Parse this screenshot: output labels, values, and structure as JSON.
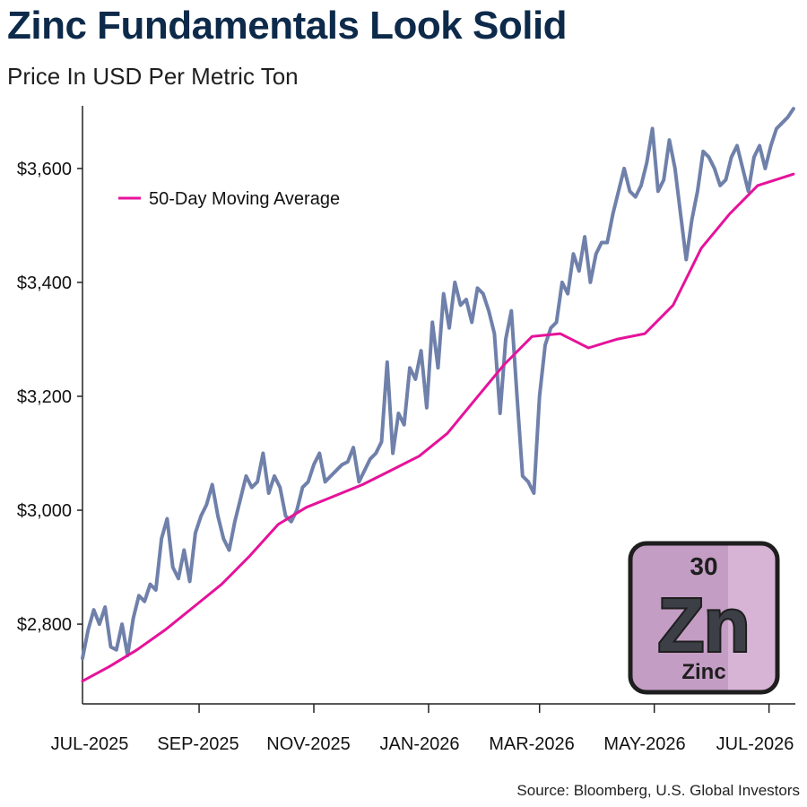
{
  "header": {
    "title": "Zinc Fundamentals Look Solid",
    "subtitle": "Price In USD Per Metric Ton"
  },
  "footer": {
    "source": "Source: Bloomberg, U.S. Global Investors"
  },
  "badge": {
    "number": "30",
    "symbol": "Zn",
    "name": "Zinc"
  },
  "colors": {
    "title": "#0d2a4a",
    "price": "#6f80aa",
    "ma": "#e6129a",
    "badge_left": "#c39dc4",
    "badge_right": "#d7b4d6",
    "badge_border": "#1e1e1e",
    "axis": "#222222"
  },
  "chart_data": {
    "type": "line",
    "title": "Zinc Fundamentals Look Solid",
    "subtitle": "Price In USD Per Metric Ton",
    "x_ticks": [
      "JUL-2025",
      "SEP-2025",
      "NOV-2025",
      "JAN-2026",
      "MAR-2026",
      "MAY-2026",
      "JUL-2026"
    ],
    "y_ticks": [
      "$2,800",
      "$3,000",
      "$3,200",
      "$3,400",
      "$3,600"
    ],
    "y_tick_values": [
      2800,
      3000,
      3200,
      3400,
      3600
    ],
    "xlim": [
      "2025-07-01",
      "2026-07-15"
    ],
    "ylim": [
      2660,
      3710
    ],
    "grid": false,
    "legend": {
      "position": "top-left"
    },
    "series": [
      {
        "key": "price",
        "x": [
          "2025-07-01",
          "2025-07-04",
          "2025-07-07",
          "2025-07-10",
          "2025-07-13",
          "2025-07-16",
          "2025-07-19",
          "2025-07-22",
          "2025-07-25",
          "2025-07-28",
          "2025-07-31",
          "2025-08-03",
          "2025-08-06",
          "2025-08-09",
          "2025-08-12",
          "2025-08-15",
          "2025-08-18",
          "2025-08-21",
          "2025-08-24",
          "2025-08-27",
          "2025-08-30",
          "2025-09-02",
          "2025-09-05",
          "2025-09-08",
          "2025-09-11",
          "2025-09-14",
          "2025-09-17",
          "2025-09-20",
          "2025-09-23",
          "2025-09-26",
          "2025-09-29",
          "2025-10-02",
          "2025-10-05",
          "2025-10-08",
          "2025-10-11",
          "2025-10-14",
          "2025-10-17",
          "2025-10-20",
          "2025-10-23",
          "2025-10-26",
          "2025-10-29",
          "2025-11-01",
          "2025-11-04",
          "2025-11-07",
          "2025-11-10",
          "2025-11-13",
          "2025-11-16",
          "2025-11-19",
          "2025-11-22",
          "2025-11-25",
          "2025-11-28",
          "2025-12-01",
          "2025-12-04",
          "2025-12-07",
          "2025-12-10",
          "2025-12-13",
          "2025-12-16",
          "2025-12-19",
          "2025-12-22",
          "2025-12-25",
          "2025-12-28",
          "2025-12-31",
          "2026-01-03",
          "2026-01-06",
          "2026-01-09",
          "2026-01-12",
          "2026-01-15",
          "2026-01-18",
          "2026-01-21",
          "2026-01-24",
          "2026-01-27",
          "2026-01-30",
          "2026-02-02",
          "2026-02-05",
          "2026-02-08",
          "2026-02-11",
          "2026-02-14",
          "2026-02-17",
          "2026-02-20",
          "2026-02-23",
          "2026-02-26",
          "2026-03-01",
          "2026-03-04",
          "2026-03-07",
          "2026-03-10",
          "2026-03-13",
          "2026-03-16",
          "2026-03-19",
          "2026-03-22",
          "2026-03-25",
          "2026-03-28",
          "2026-03-31",
          "2026-04-03",
          "2026-04-06",
          "2026-04-09",
          "2026-04-12",
          "2026-04-15",
          "2026-04-18",
          "2026-04-21",
          "2026-04-24",
          "2026-04-27",
          "2026-04-30",
          "2026-05-03",
          "2026-05-06",
          "2026-05-09",
          "2026-05-12",
          "2026-05-15",
          "2026-05-18",
          "2026-05-21",
          "2026-05-24",
          "2026-05-27",
          "2026-05-30",
          "2026-06-02",
          "2026-06-05",
          "2026-06-08",
          "2026-06-11",
          "2026-06-14",
          "2026-06-17",
          "2026-06-20",
          "2026-06-23",
          "2026-06-26",
          "2026-06-29",
          "2026-07-02",
          "2026-07-05",
          "2026-07-08",
          "2026-07-11",
          "2026-07-14"
        ],
        "values": [
          2740,
          2790,
          2825,
          2800,
          2830,
          2760,
          2755,
          2800,
          2745,
          2810,
          2850,
          2840,
          2870,
          2860,
          2950,
          2985,
          2900,
          2880,
          2930,
          2875,
          2960,
          2990,
          3010,
          3045,
          2990,
          2950,
          2930,
          2980,
          3020,
          3060,
          3040,
          3050,
          3100,
          3030,
          3060,
          3040,
          2990,
          2980,
          3000,
          3040,
          3050,
          3080,
          3100,
          3050,
          3060,
          3070,
          3080,
          3085,
          3110,
          3050,
          3070,
          3090,
          3100,
          3120,
          3260,
          3100,
          3170,
          3150,
          3250,
          3230,
          3280,
          3180,
          3330,
          3250,
          3380,
          3320,
          3400,
          3360,
          3370,
          3330,
          3390,
          3380,
          3350,
          3310,
          3170,
          3300,
          3350,
          3200,
          3060,
          3050,
          3030,
          3200,
          3290,
          3320,
          3330,
          3400,
          3380,
          3450,
          3420,
          3480,
          3400,
          3450,
          3470,
          3470,
          3520,
          3560,
          3600,
          3560,
          3550,
          3570,
          3610,
          3670,
          3560,
          3580,
          3650,
          3600,
          3520,
          3440,
          3510,
          3560,
          3630,
          3620,
          3600,
          3570,
          3580,
          3620,
          3640,
          3600,
          3560,
          3620,
          3640,
          3600,
          3640,
          3670,
          3680,
          3690,
          3705
        ]
      },
      {
        "key": "ma",
        "name": "50-Day Moving Average",
        "x": [
          "2025-07-01",
          "2025-07-15",
          "2025-07-30",
          "2025-08-14",
          "2025-08-29",
          "2025-09-13",
          "2025-09-28",
          "2025-10-13",
          "2025-10-28",
          "2025-11-12",
          "2025-11-27",
          "2025-12-12",
          "2025-12-27",
          "2026-01-11",
          "2026-01-26",
          "2026-02-10",
          "2026-02-25",
          "2026-03-12",
          "2026-03-27",
          "2026-04-11",
          "2026-04-26",
          "2026-05-11",
          "2026-05-26",
          "2026-06-10",
          "2026-06-25",
          "2026-07-14"
        ],
        "values": [
          2700,
          2725,
          2755,
          2790,
          2830,
          2870,
          2920,
          2975,
          3005,
          3025,
          3045,
          3070,
          3095,
          3135,
          3195,
          3255,
          3305,
          3310,
          3285,
          3300,
          3310,
          3360,
          3460,
          3520,
          3570,
          3590
        ]
      }
    ]
  }
}
